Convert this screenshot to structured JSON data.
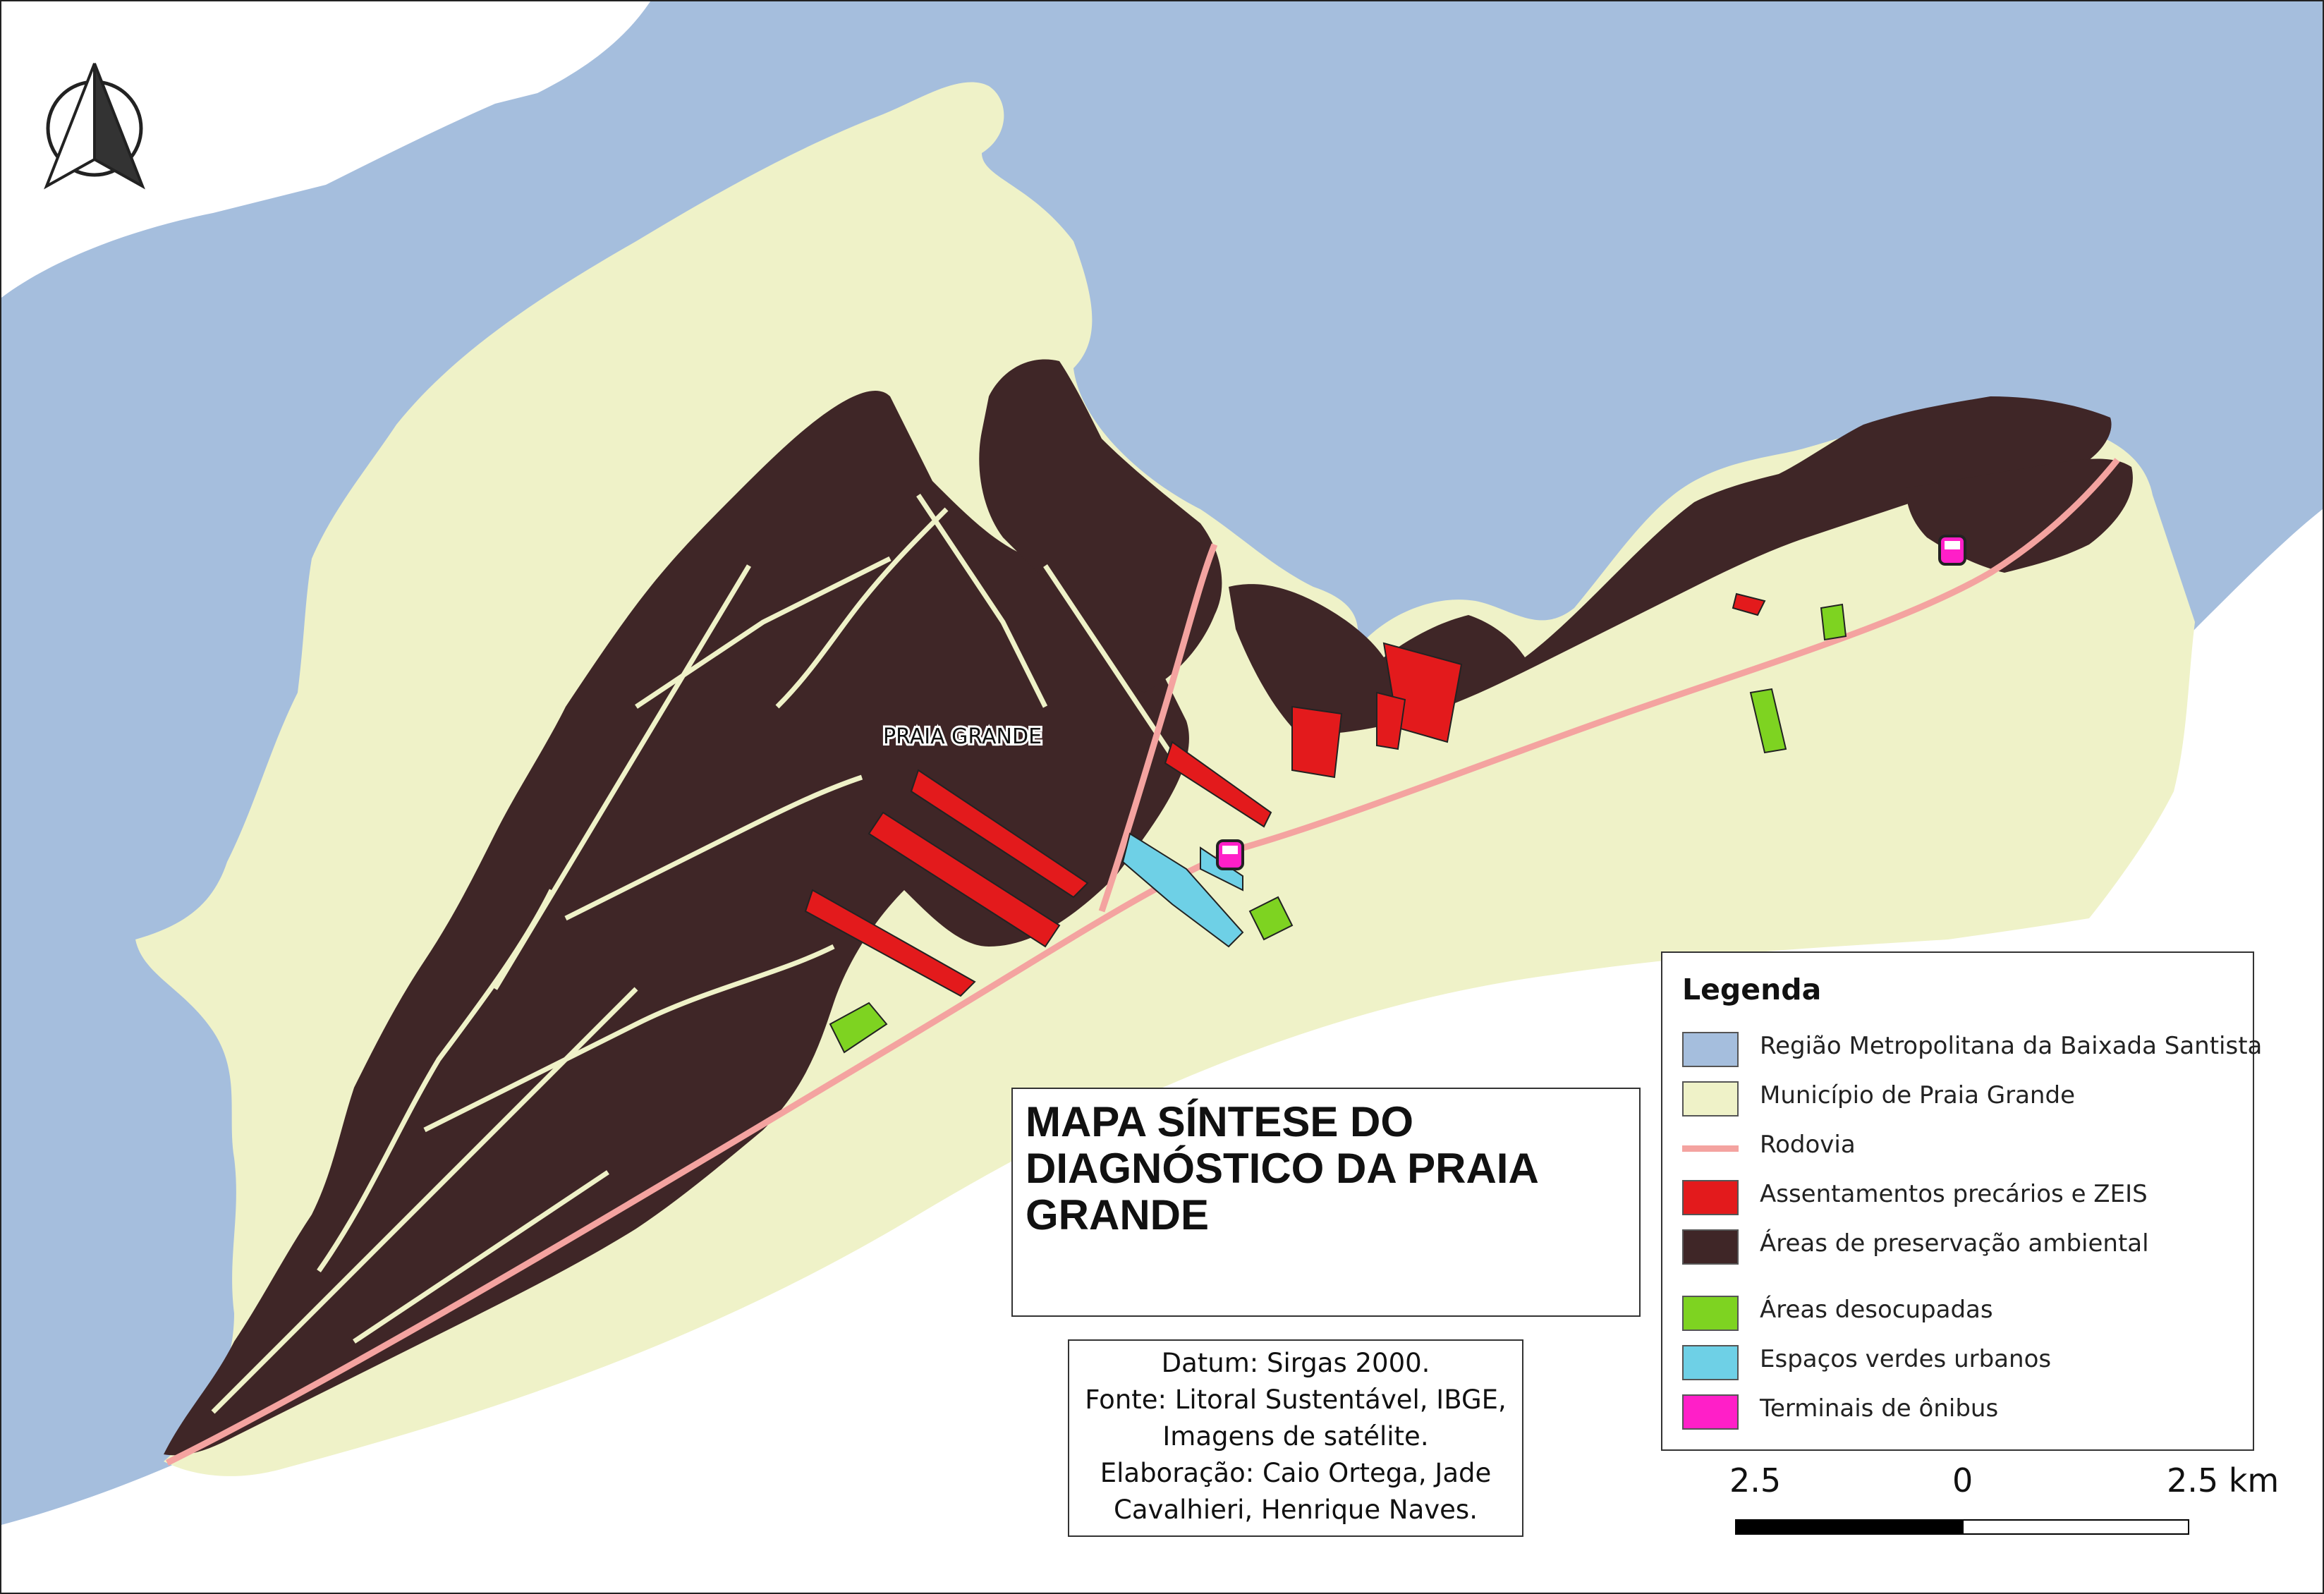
{
  "map": {
    "city_label": "PRAIA GRANDE",
    "colors": {
      "region": "#a5bedd",
      "municipality": "#eff2c8",
      "highway": "#f4a3a0",
      "settlements": "#e31a1c",
      "preservation": "#3f2627",
      "vacant": "#7ed321",
      "green_spaces": "#6ed0e6",
      "bus_terminals": "#ff1fc8",
      "trails": "#eff2c8"
    },
    "icons": {
      "north_arrow": "north-arrow-icon",
      "bus_terminal": "bus-icon"
    }
  },
  "title": {
    "text": "MAPA SÍNTESE DO DIAGNÓSTICO DA PRAIA GRANDE"
  },
  "credits": {
    "line1": "Datum: Sirgas 2000.",
    "line2": "Fonte: Litoral Sustentável, IBGE,",
    "line3": "Imagens de satélite.",
    "line4": "Elaboração: Caio Ortega, Jade",
    "line5": "Cavalhieri, Henrique Naves."
  },
  "legend": {
    "title": "Legenda",
    "items": [
      {
        "label": "Região Metropolitana da Baixada Santista",
        "color": "#a5bedd",
        "kind": "fill"
      },
      {
        "label": "Município de Praia Grande",
        "color": "#eff2c8",
        "kind": "fill"
      },
      {
        "label": "Rodovia",
        "color": "#f4a3a0",
        "kind": "line"
      },
      {
        "label": "Assentamentos precários e ZEIS",
        "color": "#e31a1c",
        "kind": "fill"
      },
      {
        "label": "Áreas de preservação ambiental",
        "color": "#3f2627",
        "kind": "fill"
      },
      {
        "label": "Áreas desocupadas",
        "color": "#7ed321",
        "kind": "fill"
      },
      {
        "label": "Espaços verdes urbanos",
        "color": "#6ed0e6",
        "kind": "fill"
      },
      {
        "label": "Terminais de ônibus",
        "color": "#ff1fc8",
        "kind": "fill"
      }
    ]
  },
  "scalebar": {
    "left_label": "2.5",
    "mid_label": "0",
    "right_label": "2.5 km"
  }
}
